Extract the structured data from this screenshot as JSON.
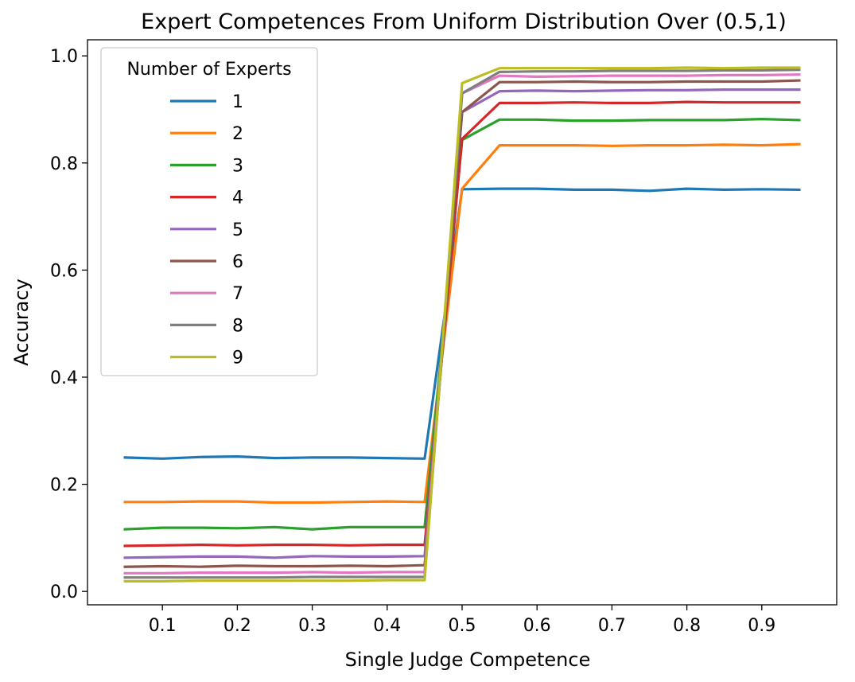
{
  "chart_data": {
    "type": "line",
    "title": "Expert Competences From Uniform Distribution Over (0.5,1)",
    "xlabel": "Single Judge Competence",
    "ylabel": "Accuracy",
    "xlim": [
      0.0,
      1.0
    ],
    "ylim": [
      -0.025,
      1.03
    ],
    "xticks": [
      0.1,
      0.2,
      0.3,
      0.4,
      0.5,
      0.6,
      0.7,
      0.8,
      0.9
    ],
    "xtick_labels": [
      "0.1",
      "0.2",
      "0.3",
      "0.4",
      "0.5",
      "0.6",
      "0.7",
      "0.8",
      "0.9"
    ],
    "yticks": [
      0.0,
      0.2,
      0.4,
      0.6,
      0.8,
      1.0
    ],
    "ytick_labels": [
      "0.0",
      "0.2",
      "0.4",
      "0.6",
      "0.8",
      "1.0"
    ],
    "grid": false,
    "legend": {
      "title": "Number of Experts",
      "placement": "top-left"
    },
    "x": [
      0.05,
      0.1,
      0.15,
      0.2,
      0.25,
      0.3,
      0.35,
      0.4,
      0.45,
      0.5,
      0.55,
      0.6,
      0.65,
      0.7,
      0.75,
      0.8,
      0.85,
      0.9,
      0.95
    ],
    "series": [
      {
        "name": "1",
        "color": "#1f77b4",
        "values": [
          0.25,
          0.248,
          0.251,
          0.252,
          0.249,
          0.25,
          0.25,
          0.249,
          0.248,
          0.751,
          0.752,
          0.752,
          0.75,
          0.75,
          0.748,
          0.752,
          0.75,
          0.751,
          0.75
        ]
      },
      {
        "name": "2",
        "color": "#ff7f0e",
        "values": [
          0.167,
          0.167,
          0.168,
          0.168,
          0.166,
          0.166,
          0.167,
          0.168,
          0.167,
          0.752,
          0.833,
          0.833,
          0.833,
          0.832,
          0.833,
          0.833,
          0.834,
          0.833,
          0.835
        ]
      },
      {
        "name": "3",
        "color": "#2ca02c",
        "values": [
          0.116,
          0.119,
          0.119,
          0.118,
          0.12,
          0.116,
          0.12,
          0.12,
          0.12,
          0.843,
          0.881,
          0.881,
          0.879,
          0.879,
          0.88,
          0.88,
          0.88,
          0.882,
          0.88
        ]
      },
      {
        "name": "4",
        "color": "#d62728",
        "values": [
          0.085,
          0.086,
          0.087,
          0.086,
          0.087,
          0.087,
          0.086,
          0.087,
          0.087,
          0.845,
          0.912,
          0.912,
          0.913,
          0.912,
          0.912,
          0.914,
          0.913,
          0.913,
          0.913
        ]
      },
      {
        "name": "5",
        "color": "#9467bd",
        "values": [
          0.063,
          0.064,
          0.065,
          0.065,
          0.063,
          0.066,
          0.065,
          0.065,
          0.066,
          0.895,
          0.934,
          0.935,
          0.934,
          0.935,
          0.936,
          0.936,
          0.937,
          0.937,
          0.937
        ]
      },
      {
        "name": "6",
        "color": "#8c564b",
        "values": [
          0.046,
          0.047,
          0.046,
          0.048,
          0.047,
          0.047,
          0.048,
          0.047,
          0.049,
          0.895,
          0.951,
          0.951,
          0.952,
          0.951,
          0.951,
          0.952,
          0.952,
          0.952,
          0.954
        ]
      },
      {
        "name": "7",
        "color": "#e377c2",
        "values": [
          0.034,
          0.034,
          0.035,
          0.035,
          0.035,
          0.036,
          0.035,
          0.036,
          0.036,
          0.93,
          0.963,
          0.961,
          0.962,
          0.963,
          0.963,
          0.963,
          0.964,
          0.964,
          0.965
        ]
      },
      {
        "name": "8",
        "color": "#7f7f7f",
        "values": [
          0.026,
          0.026,
          0.026,
          0.026,
          0.026,
          0.027,
          0.027,
          0.027,
          0.027,
          0.93,
          0.97,
          0.971,
          0.971,
          0.972,
          0.972,
          0.972,
          0.973,
          0.973,
          0.974
        ]
      },
      {
        "name": "9",
        "color": "#bcbd22",
        "values": [
          0.019,
          0.019,
          0.02,
          0.02,
          0.02,
          0.02,
          0.02,
          0.021,
          0.021,
          0.949,
          0.977,
          0.977,
          0.977,
          0.977,
          0.977,
          0.978,
          0.977,
          0.978,
          0.978
        ]
      }
    ]
  }
}
